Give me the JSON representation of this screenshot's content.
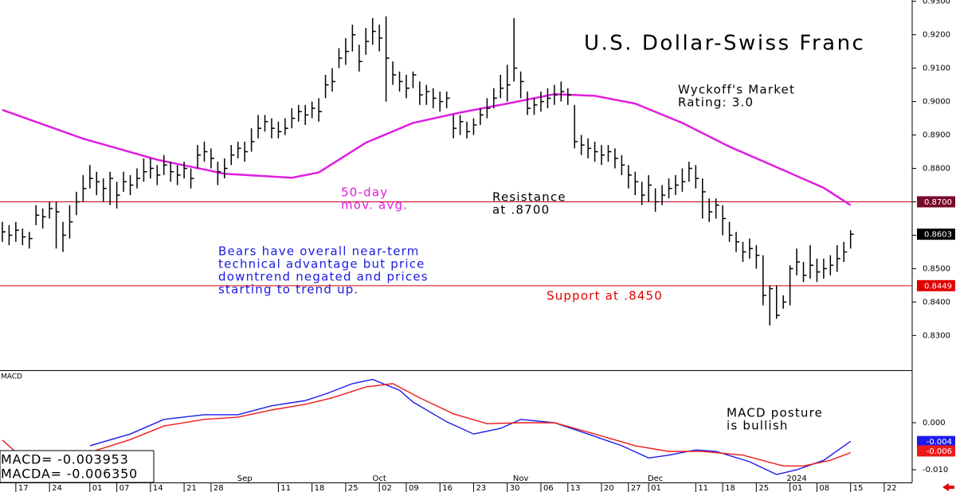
{
  "chart_data": [
    {
      "type": "ohlc",
      "title": "U.S. Dollar-Swiss Franc",
      "color": "#000000",
      "xlim": [
        -0.35,
        135.15
      ],
      "ylim": [
        0.8196,
        0.9304
      ],
      "yticks": [
        {
          "value": 0.83,
          "label": "0.8300"
        },
        {
          "value": 0.84,
          "label": "0.8400"
        },
        {
          "value": 0.85,
          "label": "0.8500"
        },
        {
          "value": 0.86,
          "label": "0.8600"
        },
        {
          "value": 0.87,
          "label": "0.8700"
        },
        {
          "value": 0.88,
          "label": "0.8800"
        },
        {
          "value": 0.89,
          "label": "0.8900"
        },
        {
          "value": 0.9,
          "label": "0.9000"
        },
        {
          "value": 0.91,
          "label": "0.9100"
        },
        {
          "value": 0.92,
          "label": "0.9200"
        },
        {
          "value": 0.93,
          "label": "0.9300"
        }
      ],
      "high": [
        0.864,
        0.863,
        0.864,
        0.862,
        0.861,
        0.869,
        0.868,
        0.87,
        0.87,
        0.864,
        0.869,
        0.873,
        0.878,
        0.881,
        0.879,
        0.877,
        0.879,
        0.876,
        0.879,
        0.878,
        0.88,
        0.883,
        0.883,
        0.881,
        0.884,
        0.882,
        0.881,
        0.882,
        0.88,
        0.887,
        0.888,
        0.886,
        0.882,
        0.883,
        0.887,
        0.888,
        0.888,
        0.892,
        0.896,
        0.896,
        0.895,
        0.894,
        0.895,
        0.898,
        0.899,
        0.899,
        0.9,
        0.901,
        0.908,
        0.91,
        0.916,
        0.919,
        0.923,
        0.917,
        0.922,
        0.925,
        0.923,
        0.9255,
        0.912,
        0.909,
        0.908,
        0.909,
        0.906,
        0.905,
        0.904,
        0.903,
        0.903,
        0.896,
        0.896,
        0.894,
        0.895,
        0.898,
        0.901,
        0.904,
        0.908,
        0.911,
        0.925,
        0.909,
        0.903,
        0.901,
        0.903,
        0.904,
        0.905,
        0.906,
        0.904,
        0.899,
        0.89,
        0.889,
        0.888,
        0.887,
        0.887,
        0.886,
        0.884,
        0.881,
        0.879,
        0.876,
        0.878,
        0.874,
        0.875,
        0.877,
        0.878,
        0.88,
        0.882,
        0.881,
        0.877,
        0.871,
        0.871,
        0.869,
        0.864,
        0.861,
        0.858,
        0.859,
        0.857,
        0.854,
        0.845,
        0.845,
        0.842,
        0.851,
        0.856,
        0.852,
        0.857,
        0.853,
        0.853,
        0.854,
        0.857,
        0.858,
        0.8615
      ],
      "low": [
        0.858,
        0.857,
        0.858,
        0.857,
        0.856,
        0.863,
        0.862,
        0.865,
        0.856,
        0.855,
        0.859,
        0.866,
        0.87,
        0.874,
        0.872,
        0.87,
        0.869,
        0.868,
        0.873,
        0.872,
        0.874,
        0.876,
        0.877,
        0.875,
        0.878,
        0.876,
        0.875,
        0.877,
        0.874,
        0.88,
        0.882,
        0.88,
        0.875,
        0.877,
        0.881,
        0.883,
        0.882,
        0.885,
        0.889,
        0.891,
        0.889,
        0.889,
        0.89,
        0.892,
        0.894,
        0.893,
        0.895,
        0.894,
        0.901,
        0.903,
        0.91,
        0.911,
        0.915,
        0.909,
        0.914,
        0.917,
        0.915,
        0.9,
        0.905,
        0.903,
        0.901,
        0.904,
        0.899,
        0.899,
        0.898,
        0.897,
        0.898,
        0.889,
        0.89,
        0.889,
        0.89,
        0.893,
        0.895,
        0.898,
        0.901,
        0.9,
        0.906,
        0.901,
        0.896,
        0.896,
        0.897,
        0.898,
        0.899,
        0.9,
        0.899,
        0.886,
        0.884,
        0.883,
        0.882,
        0.881,
        0.882,
        0.88,
        0.878,
        0.874,
        0.872,
        0.869,
        0.87,
        0.867,
        0.869,
        0.871,
        0.872,
        0.873,
        0.876,
        0.874,
        0.865,
        0.864,
        0.865,
        0.86,
        0.858,
        0.855,
        0.852,
        0.853,
        0.85,
        0.839,
        0.833,
        0.835,
        0.838,
        0.839,
        0.848,
        0.846,
        0.847,
        0.846,
        0.847,
        0.848,
        0.849,
        0.852,
        0.856
      ],
      "close": [
        0.861,
        0.86,
        0.8615,
        0.8595,
        0.859,
        0.866,
        0.8655,
        0.868,
        0.867,
        0.86,
        0.864,
        0.87,
        0.874,
        0.877,
        0.876,
        0.874,
        0.877,
        0.872,
        0.876,
        0.875,
        0.877,
        0.879,
        0.88,
        0.878,
        0.881,
        0.879,
        0.878,
        0.88,
        0.877,
        0.884,
        0.885,
        0.883,
        0.879,
        0.88,
        0.884,
        0.886,
        0.885,
        0.888,
        0.892,
        0.894,
        0.892,
        0.891,
        0.892,
        0.895,
        0.897,
        0.896,
        0.898,
        0.897,
        0.905,
        0.906,
        0.913,
        0.915,
        0.92,
        0.912,
        0.918,
        0.921,
        0.919,
        0.913,
        0.908,
        0.906,
        0.904,
        0.908,
        0.902,
        0.903,
        0.901,
        0.9,
        0.901,
        0.892,
        0.894,
        0.891,
        0.893,
        0.896,
        0.898,
        0.901,
        0.904,
        0.905,
        0.91,
        0.906,
        0.898,
        0.899,
        0.9,
        0.901,
        0.902,
        0.903,
        0.902,
        0.888,
        0.887,
        0.886,
        0.885,
        0.884,
        0.885,
        0.883,
        0.881,
        0.878,
        0.876,
        0.872,
        0.875,
        0.87,
        0.872,
        0.874,
        0.875,
        0.876,
        0.88,
        0.877,
        0.873,
        0.867,
        0.869,
        0.865,
        0.86,
        0.858,
        0.855,
        0.856,
        0.854,
        0.842,
        0.844,
        0.836,
        0.84,
        0.85,
        0.852,
        0.848,
        0.851,
        0.849,
        0.85,
        0.851,
        0.853,
        0.855,
        0.8603
      ],
      "moving_average": {
        "color": "#e01ee0",
        "x": [
          0,
          12,
          23,
          33,
          43,
          47,
          54,
          61,
          68,
          75,
          82,
          88,
          94,
          101,
          108,
          116,
          122,
          126
        ],
        "values": [
          0.8975,
          0.8889,
          0.8826,
          0.8784,
          0.8772,
          0.8788,
          0.8877,
          0.8936,
          0.8967,
          0.8994,
          0.9022,
          0.9017,
          0.8994,
          0.8936,
          0.8865,
          0.8795,
          0.8742,
          0.869
        ]
      },
      "tags": [
        {
          "value": 0.87,
          "label": "0.8700",
          "color": "#7a0a2a",
          "line": true
        },
        {
          "value": 0.8603,
          "label": "0.8603",
          "color": "#000000",
          "line": false
        },
        {
          "value": 0.8449,
          "label": "0.8449",
          "color": "#e00000",
          "line": true
        }
      ],
      "annotations": [
        {
          "lines": [
            "Wyckoff's Market",
            "Rating: 3.0"
          ],
          "color": "#000000"
        },
        {
          "lines": [
            "50-day",
            "mov. avg."
          ],
          "color": "#e01ee0"
        },
        {
          "lines": [
            "Resistance",
            "at .8700"
          ],
          "color": "#000000"
        },
        {
          "lines": [
            "Bears have overall near-term",
            "technical advantage but price",
            "downtrend negated and prices",
            "starting to trend up."
          ],
          "color": "#1a1ae0"
        },
        {
          "lines": [
            "Support at .8450"
          ],
          "color": "#e00000"
        }
      ]
    },
    {
      "type": "line",
      "label": "MACD",
      "xlim": [
        -0.35,
        135.15
      ],
      "ylim": [
        -0.0127,
        0.011
      ],
      "yticks": [
        {
          "value": 0,
          "label": "0.000"
        },
        {
          "value": -0.01,
          "label": "-0.010"
        }
      ],
      "series": [
        {
          "color": "#1a1aee",
          "x": [
            13,
            19,
            24,
            30,
            35,
            40,
            45,
            48,
            52,
            55,
            59,
            61,
            66,
            70,
            74,
            77,
            82,
            87,
            92,
            96,
            99,
            103,
            106,
            111,
            115,
            118,
            122,
            126
          ],
          "values": [
            -0.0049,
            -0.0024,
            0.0007,
            0.0017,
            0.0017,
            0.0036,
            0.0047,
            0.0061,
            0.0083,
            0.0092,
            0.0069,
            0.0044,
            0.0002,
            -0.0024,
            -0.0012,
            0.0007,
            0,
            -0.0024,
            -0.0049,
            -0.0075,
            -0.0069,
            -0.0058,
            -0.0061,
            -0.0083,
            -0.011,
            -0.01,
            -0.008,
            -0.003953
          ]
        },
        {
          "color": "#ee1a1a",
          "x": [
            0,
            3,
            13,
            19,
            24,
            30,
            35,
            40,
            45,
            49,
            54,
            58,
            62,
            67,
            72,
            77,
            82,
            88,
            94,
            99,
            104,
            110,
            116,
            119,
            123,
            126
          ],
          "values": [
            -0.0037,
            -0.0075,
            -0.0063,
            -0.0036,
            -0.0007,
            0.0007,
            0.0012,
            0.0027,
            0.0039,
            0.0053,
            0.0076,
            0.0083,
            0.0053,
            0.0019,
            -0.0002,
            0,
            0,
            -0.0024,
            -0.0049,
            -0.0061,
            -0.0061,
            -0.0069,
            -0.0092,
            -0.0092,
            -0.008,
            -0.00635
          ]
        }
      ],
      "tags": [
        {
          "value": -0.004,
          "color": "#1a1aee"
        },
        {
          "value": -0.006,
          "color": "#ee1a1a"
        }
      ],
      "legend": [
        "MACD=   -0.003953",
        "MACDA= -0.006350"
      ],
      "annotations": [
        {
          "lines": [
            "MACD posture",
            "is bullish"
          ],
          "color": "#000000"
        }
      ],
      "xticks": [
        {
          "value": 2,
          "label": "17"
        },
        {
          "value": 7,
          "label": "24"
        },
        {
          "value": 13,
          "label": "01"
        },
        {
          "value": 17,
          "label": "07"
        },
        {
          "value": 22,
          "label": "14"
        },
        {
          "value": 27,
          "label": "21"
        },
        {
          "value": 31,
          "label": "28"
        },
        {
          "value": 41,
          "label": "11"
        },
        {
          "value": 46,
          "label": "18"
        },
        {
          "value": 51,
          "label": "25"
        },
        {
          "value": 56,
          "label": "02"
        },
        {
          "value": 60,
          "label": "09"
        },
        {
          "value": 65,
          "label": "16"
        },
        {
          "value": 70,
          "label": "23"
        },
        {
          "value": 75,
          "label": "30"
        },
        {
          "value": 80,
          "label": "06"
        },
        {
          "value": 84,
          "label": "13"
        },
        {
          "value": 89,
          "label": "20"
        },
        {
          "value": 93,
          "label": "27"
        },
        {
          "value": 96,
          "label": "01"
        },
        {
          "value": 103,
          "label": "11"
        },
        {
          "value": 107,
          "label": "18"
        },
        {
          "value": 112,
          "label": "25"
        },
        {
          "value": 117,
          "label": "01"
        },
        {
          "value": 121,
          "label": "08"
        },
        {
          "value": 126,
          "label": "15"
        },
        {
          "value": 131,
          "label": "22"
        }
      ],
      "month_ticks": [
        {
          "value": 36,
          "label": "Sep"
        },
        {
          "value": 56,
          "label": "Oct"
        },
        {
          "value": 77,
          "label": "Nov"
        },
        {
          "value": 97,
          "label": "Dec"
        },
        {
          "value": 118,
          "label": "2024"
        }
      ]
    }
  ]
}
